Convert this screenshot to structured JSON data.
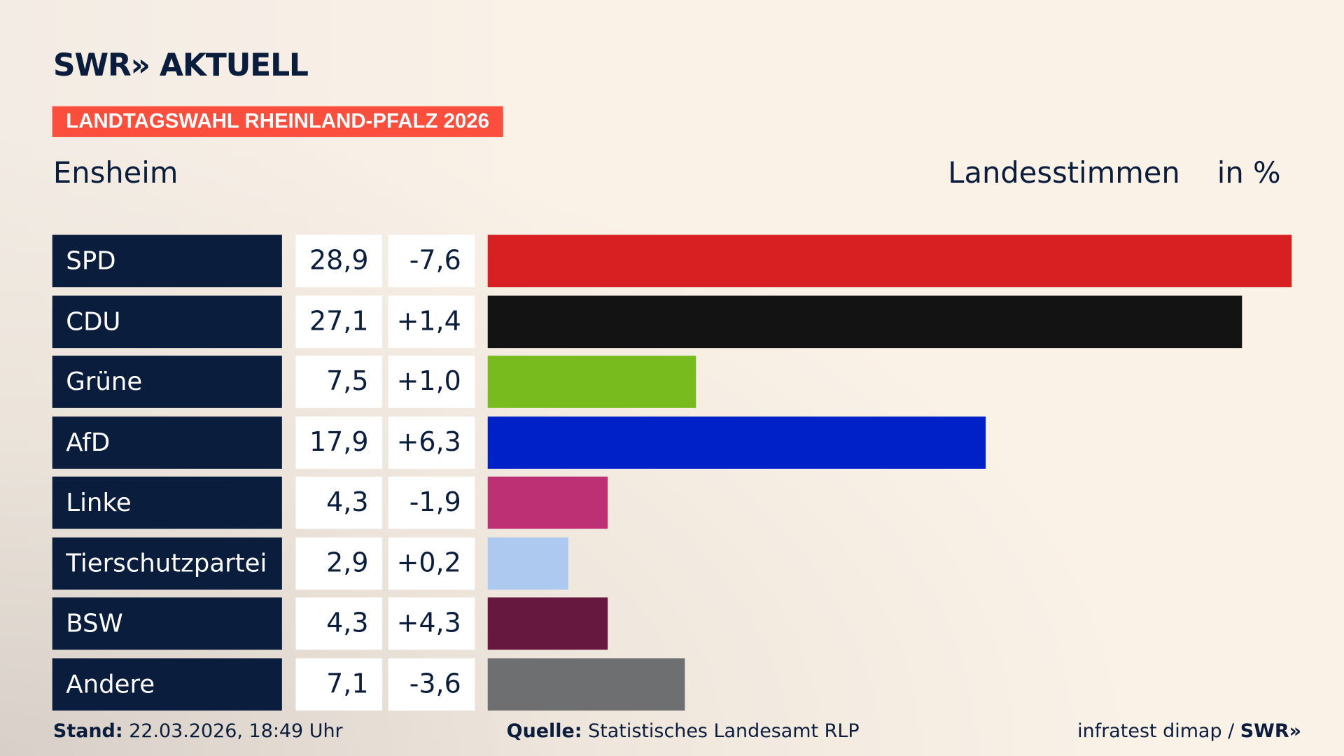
{
  "header": {
    "logo": "SWR» AKTUELL",
    "tag": "LANDTAGSWAHL RHEINLAND-PFALZ 2026",
    "location": "Ensheim",
    "measure": "Landesstimmen",
    "unit": "in %"
  },
  "chart_data": {
    "type": "bar",
    "orientation": "horizontal",
    "xlim": [
      0,
      28.9
    ],
    "categories": [
      "SPD",
      "CDU",
      "Grüne",
      "AfD",
      "Linke",
      "Tierschutzpartei",
      "BSW",
      "Andere"
    ],
    "values": [
      "28,9",
      "27,1",
      "7,5",
      "17,9",
      "4,3",
      "2,9",
      "4,3",
      "7,1"
    ],
    "numeric_values": [
      28.9,
      27.1,
      7.5,
      17.9,
      4.3,
      2.9,
      4.3,
      7.1
    ],
    "changes": [
      "-7,6",
      "+1,4",
      "+1,0",
      "+6,3",
      "-1,9",
      "+0,2",
      "+4,3",
      "-3,6"
    ],
    "colors": [
      "#d81f22",
      "#131313",
      "#78bb1e",
      "#0020c8",
      "#bd3174",
      "#adc9f0",
      "#66183e",
      "#6e6f70"
    ]
  },
  "footer": {
    "stand_label": "Stand:",
    "stand": "22.03.2026, 18:49 Uhr",
    "quelle_label": "Quelle:",
    "quelle": "Statistisches Landesamt RLP",
    "credit": "infratest dimap / ",
    "credit_logo": "SWR»"
  }
}
